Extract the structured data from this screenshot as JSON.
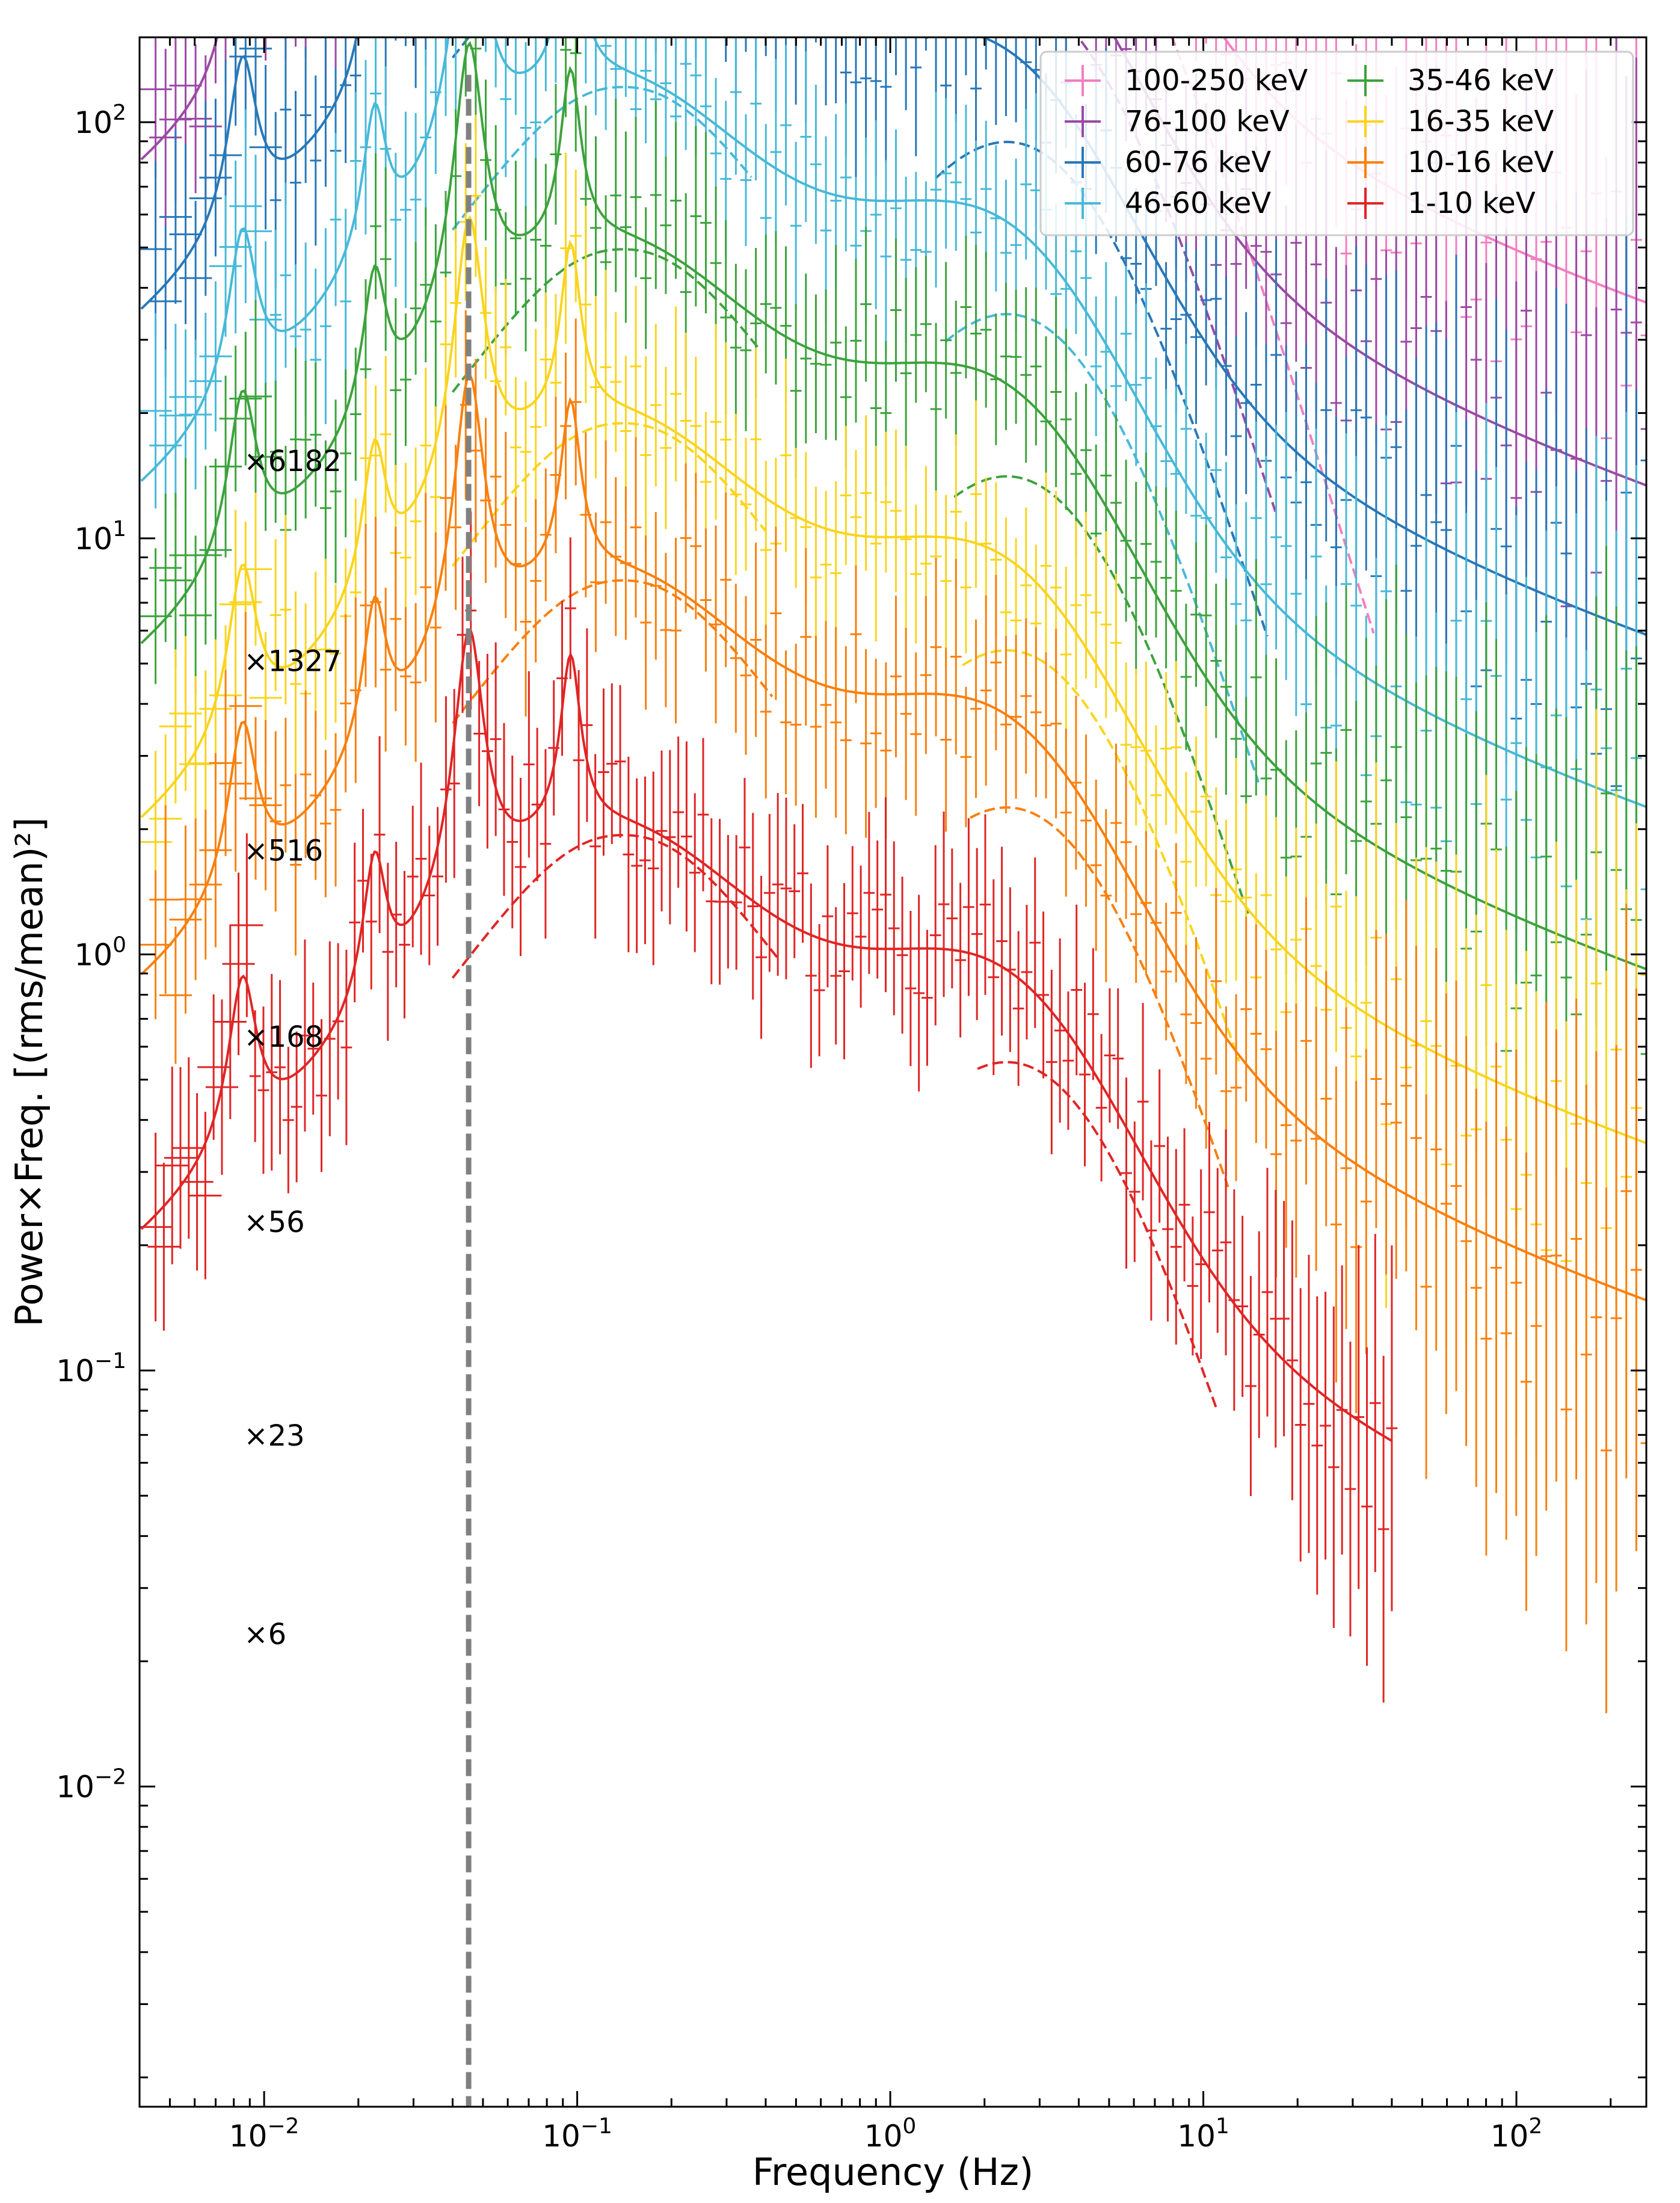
{
  "chart_data": {
    "type": "line",
    "title": "",
    "xlabel": "Frequency (Hz)",
    "ylabel": "Power×Freq. [(rms/mean)²]",
    "xscale": "log",
    "yscale": "log",
    "xlim": [
      0.004,
      260
    ],
    "ylim": [
      0.0017,
      160
    ],
    "x_ticks": [
      {
        "value": 0.01,
        "base": "10",
        "exp": "−2"
      },
      {
        "value": 0.1,
        "base": "10",
        "exp": "−1"
      },
      {
        "value": 1,
        "base": "10",
        "exp": "0"
      },
      {
        "value": 10,
        "base": "10",
        "exp": "1"
      },
      {
        "value": 100,
        "base": "10",
        "exp": "2"
      }
    ],
    "y_ticks": [
      {
        "value": 0.01,
        "base": "10",
        "exp": "−2"
      },
      {
        "value": 0.1,
        "base": "10",
        "exp": "−1"
      },
      {
        "value": 1,
        "base": "10",
        "exp": "0"
      },
      {
        "value": 10,
        "base": "10",
        "exp": "1"
      },
      {
        "value": 100,
        "base": "10",
        "exp": "2"
      }
    ],
    "legend_position": "top-right",
    "vertical_line": {
      "x": 0.045,
      "color": "#808080",
      "style": "dashed"
    },
    "scale_labels": [
      {
        "text": "×6182",
        "x": 0.0085,
        "y": 14.5
      },
      {
        "text": "×1327",
        "x": 0.0085,
        "y": 4.8
      },
      {
        "text": "×516",
        "x": 0.0085,
        "y": 1.68
      },
      {
        "text": "×168",
        "x": 0.0085,
        "y": 0.6
      },
      {
        "text": "×56",
        "x": 0.0085,
        "y": 0.215
      },
      {
        "text": "×23",
        "x": 0.0085,
        "y": 0.066
      },
      {
        "text": "×6",
        "x": 0.0085,
        "y": 0.022
      }
    ],
    "series": [
      {
        "name": "100-250 keV",
        "color": "#f37ec1",
        "scale": 2200,
        "xmin": 0.0045,
        "xmax": 260
      },
      {
        "name": "76-100 keV",
        "color": "#9b4aa5",
        "scale": 800,
        "xmin": 0.0045,
        "xmax": 260
      },
      {
        "name": "60-76 keV",
        "color": "#2878b8",
        "scale": 350,
        "xmin": 0.0045,
        "xmax": 260
      },
      {
        "name": "46-60 keV",
        "color": "#48b9d8",
        "scale": 135,
        "xmin": 0.0045,
        "xmax": 260
      },
      {
        "name": "35-46 keV",
        "color": "#3ca33c",
        "scale": 55,
        "xmin": 0.0045,
        "xmax": 260
      },
      {
        "name": "16-35 keV",
        "color": "#fad41e",
        "scale": 21,
        "xmin": 0.0045,
        "xmax": 260
      },
      {
        "name": "10-16 keV",
        "color": "#f9800e",
        "scale": 8.8,
        "xmin": 0.0045,
        "xmax": 260
      },
      {
        "name": "1-10 keV",
        "color": "#e02525",
        "scale": 2.15,
        "xmin": 0.0045,
        "xmax": 40
      }
    ]
  }
}
